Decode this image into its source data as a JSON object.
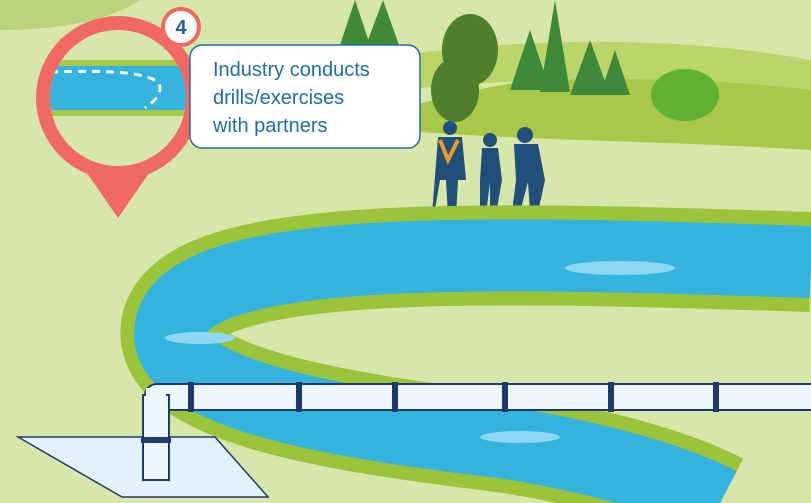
{
  "callout": {
    "number": "4",
    "lines": [
      "Industry conducts",
      "drills/exercises",
      "with partners"
    ]
  }
}
